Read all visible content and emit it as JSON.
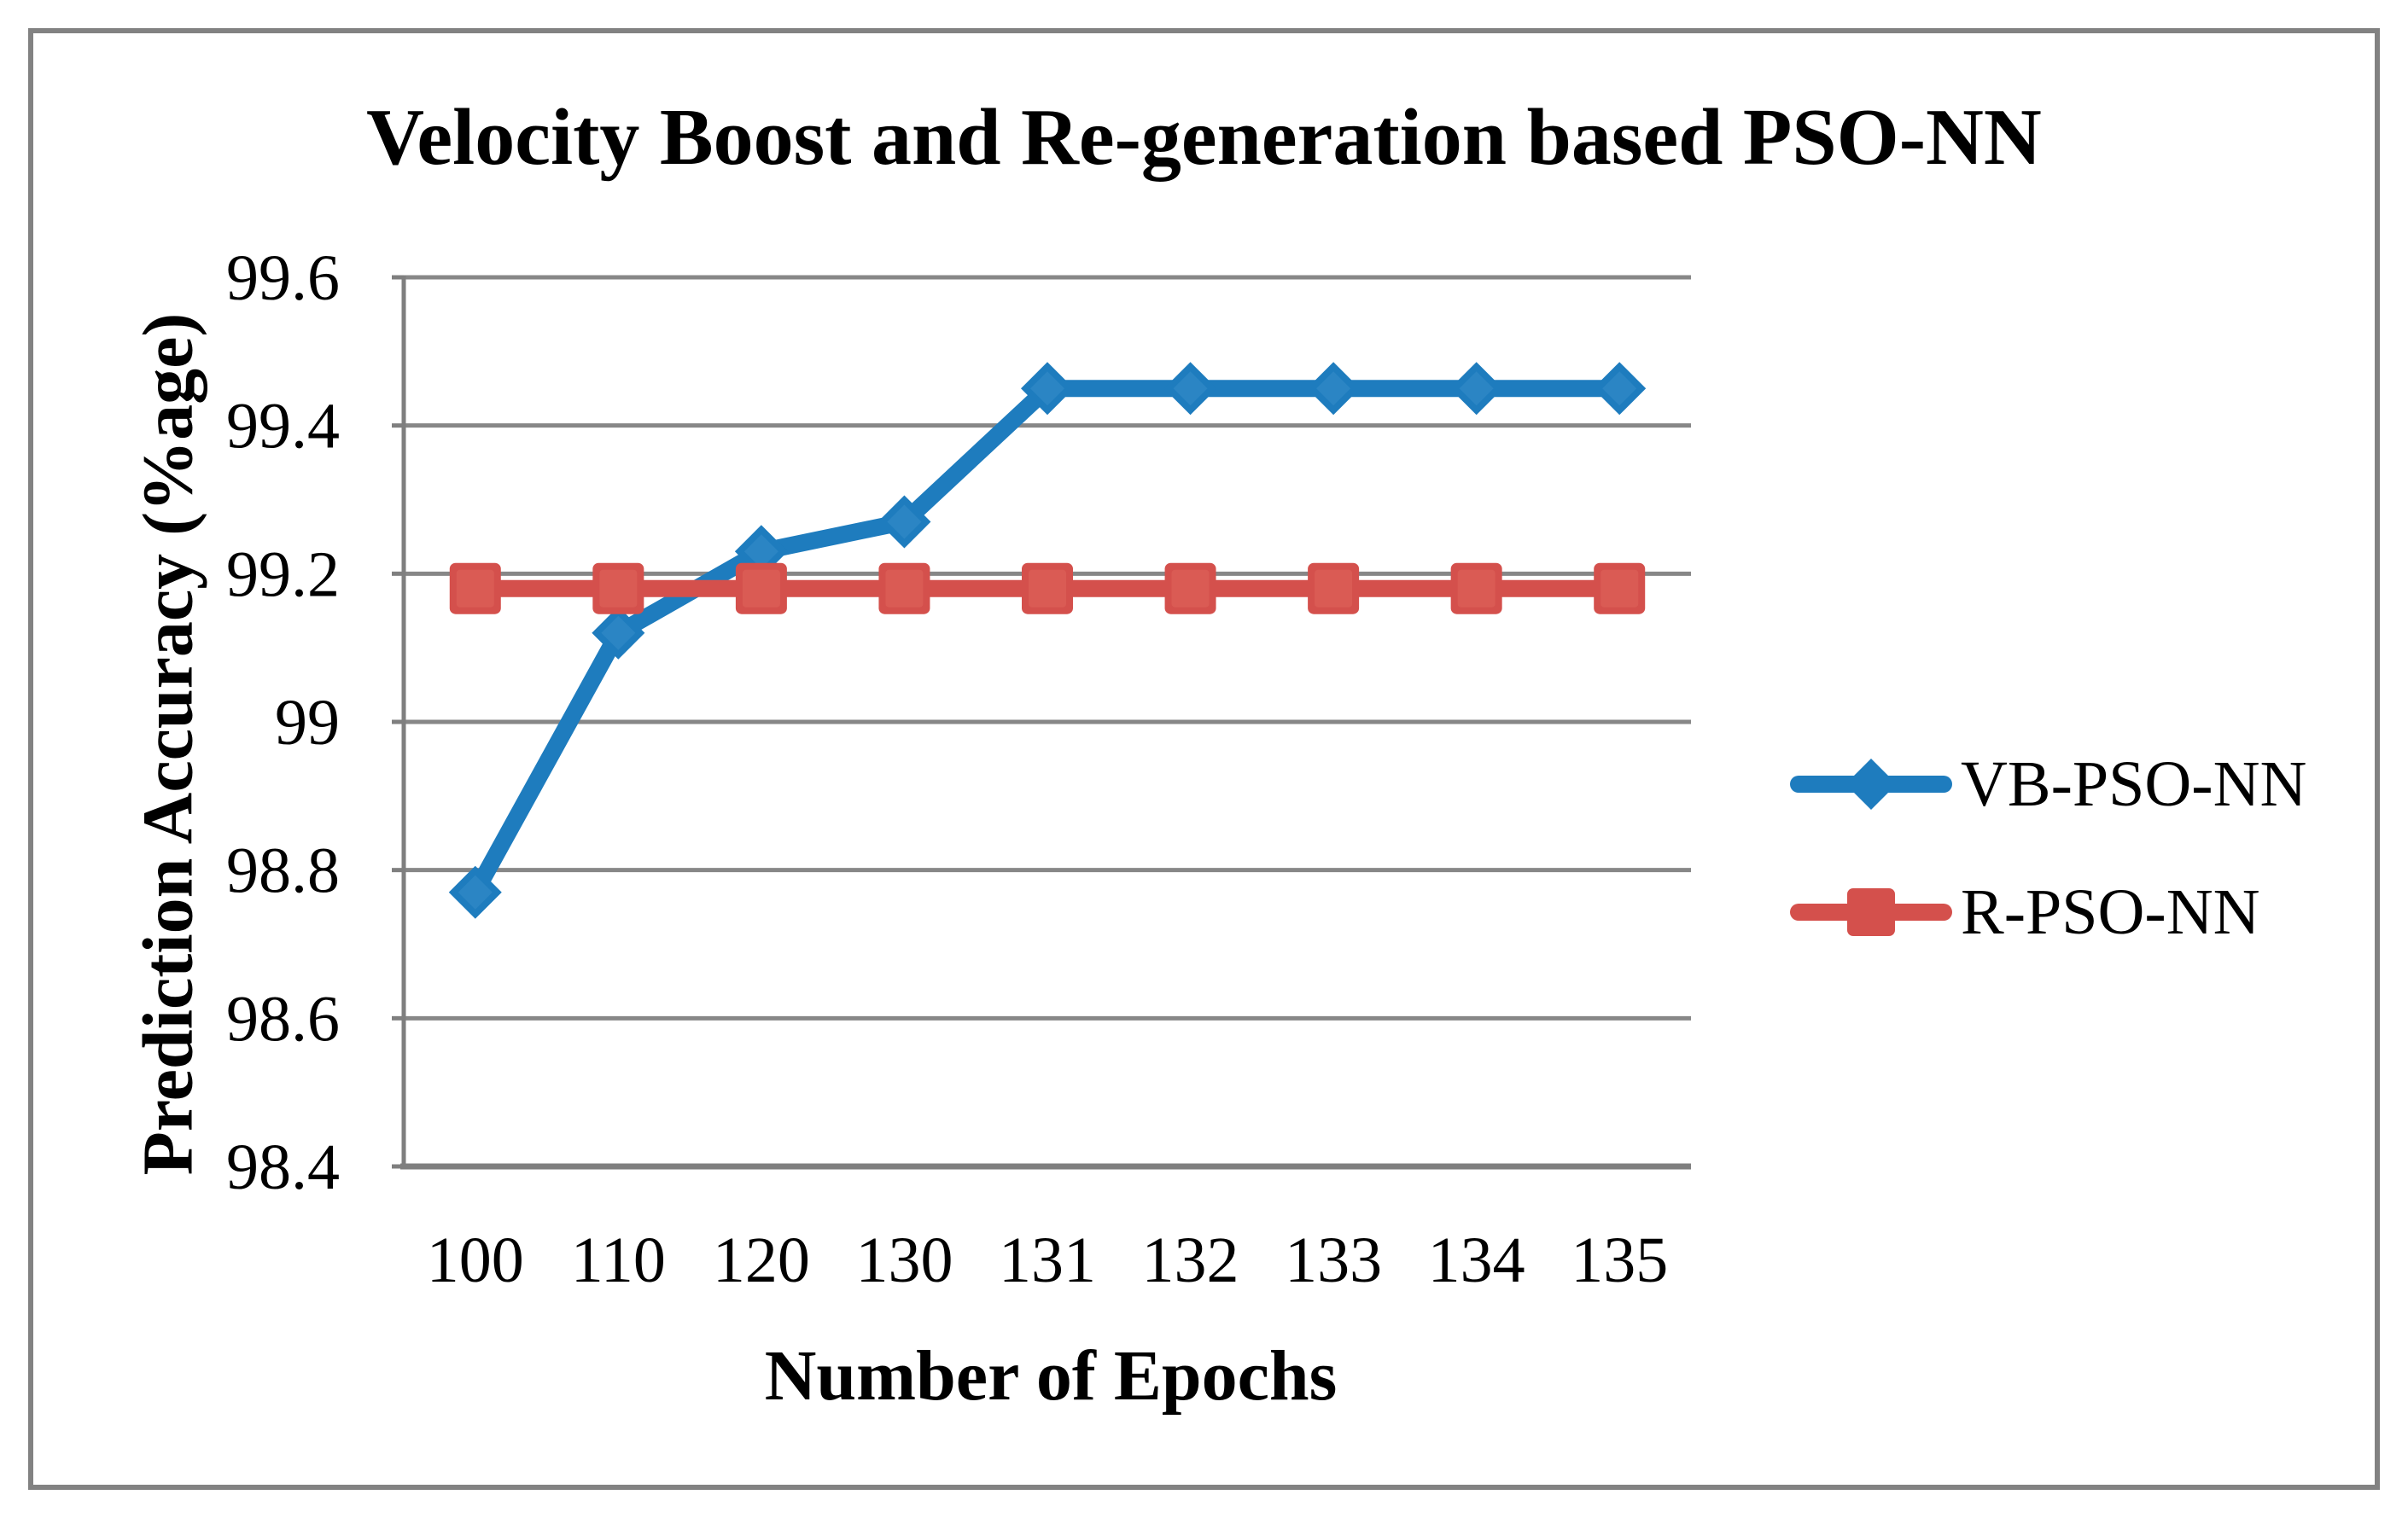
{
  "frame": {
    "border_color": "#828282",
    "background": "#ffffff"
  },
  "chart_data": {
    "type": "line",
    "title": "Velocity Boost and Re-generation based PSO-NN",
    "xlabel": "Number of Epochs",
    "ylabel": "Prediction Accuracy (%age)",
    "categories": [
      "100",
      "110",
      "120",
      "130",
      "131",
      "132",
      "133",
      "134",
      "135"
    ],
    "series": [
      {
        "name": "VB-PSO-NN",
        "marker": "diamond",
        "color": "#1E7CBE",
        "marker_inner_color": "#2B85C4",
        "values": [
          98.77,
          99.12,
          99.23,
          99.27,
          99.45,
          99.45,
          99.45,
          99.45,
          99.45
        ]
      },
      {
        "name": "R-PSO-NN",
        "marker": "square",
        "color": "#D4504C",
        "marker_inner_color": "#DA5B54",
        "values": [
          99.18,
          99.18,
          99.18,
          99.18,
          99.18,
          99.18,
          99.18,
          99.18,
          99.18
        ]
      }
    ],
    "ylim": [
      98.4,
      99.6
    ],
    "yticks": [
      98.4,
      98.6,
      98.8,
      99,
      99.2,
      99.4,
      99.6
    ],
    "ytick_labels": [
      "98.4",
      "98.6",
      "98.8",
      "99",
      "99.2",
      "99.4",
      "99.6"
    ],
    "grid": true,
    "gridline_color": "#878787",
    "axis_color": "#7F7F7F",
    "text_color": "#000000",
    "legend_position": "right"
  }
}
